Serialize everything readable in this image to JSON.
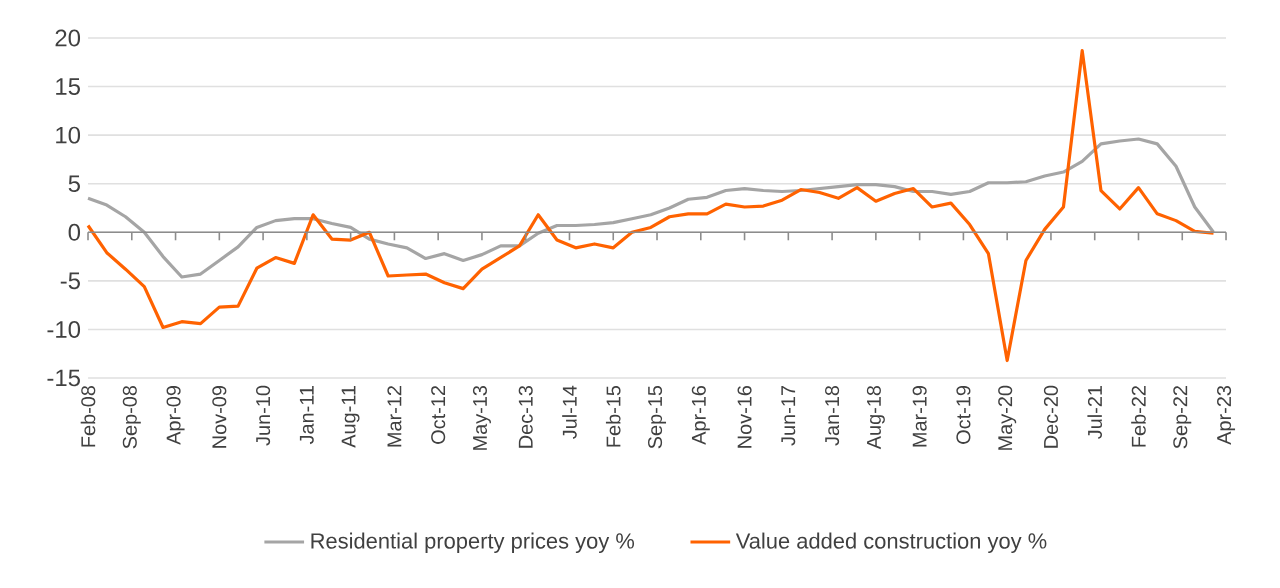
{
  "chart_data": {
    "type": "line",
    "x": [
      "2008-02",
      "2008-05",
      "2008-08",
      "2008-11",
      "2009-02",
      "2009-05",
      "2009-08",
      "2009-11",
      "2010-02",
      "2010-05",
      "2010-08",
      "2010-11",
      "2011-02",
      "2011-05",
      "2011-08",
      "2011-11",
      "2012-02",
      "2012-05",
      "2012-08",
      "2012-11",
      "2013-02",
      "2013-05",
      "2013-08",
      "2013-11",
      "2014-02",
      "2014-05",
      "2014-08",
      "2014-11",
      "2015-02",
      "2015-05",
      "2015-08",
      "2015-11",
      "2016-02",
      "2016-05",
      "2016-08",
      "2016-11",
      "2017-02",
      "2017-05",
      "2017-08",
      "2017-11",
      "2018-02",
      "2018-05",
      "2018-08",
      "2018-11",
      "2019-02",
      "2019-05",
      "2019-08",
      "2019-11",
      "2020-02",
      "2020-05",
      "2020-08",
      "2020-11",
      "2021-02",
      "2021-05",
      "2021-08",
      "2021-11",
      "2022-02",
      "2022-05",
      "2022-08",
      "2022-11",
      "2023-02"
    ],
    "series": [
      {
        "name": "Residential property prices yoy %",
        "color": "#a5a5a5",
        "values": [
          3.5,
          2.8,
          1.6,
          0,
          -2.5,
          -4.6,
          -4.3,
          -2.9,
          -1.5,
          0.5,
          1.2,
          1.4,
          1.4,
          0.9,
          0.5,
          -0.7,
          -1.2,
          -1.6,
          -2.7,
          -2.2,
          -2.9,
          -2.3,
          -1.4,
          -1.4,
          -0.1,
          0.7,
          0.7,
          0.8,
          1.0,
          1.4,
          1.8,
          2.5,
          3.4,
          3.6,
          4.3,
          4.5,
          4.3,
          4.2,
          4.3,
          4.5,
          4.7,
          4.9,
          4.9,
          4.7,
          4.2,
          4.2,
          3.9,
          4.2,
          5.1,
          5.1,
          5.2,
          5.8,
          6.2,
          7.3,
          9.1,
          9.4,
          9.6,
          9.1,
          6.8,
          2.6,
          0
        ]
      },
      {
        "name": "Value added construction yoy %",
        "color": "#ff6200",
        "values": [
          0.7,
          -2.1,
          -3.8,
          -5.6,
          -9.8,
          -9.2,
          -9.4,
          -7.7,
          -7.6,
          -3.7,
          -2.6,
          -3.2,
          1.8,
          -0.7,
          -0.8,
          0,
          -4.5,
          -4.4,
          -4.3,
          -5.2,
          -5.8,
          -3.8,
          -2.6,
          -1.4,
          1.8,
          -0.8,
          -1.6,
          -1.2,
          -1.6,
          0,
          0.5,
          1.6,
          1.9,
          1.9,
          2.9,
          2.6,
          2.7,
          3.3,
          4.4,
          4.1,
          3.5,
          4.6,
          3.2,
          4.0,
          4.5,
          2.6,
          3.0,
          0.8,
          -2.2,
          -13.2,
          -2.9,
          0.3,
          2.6,
          18.7,
          4.3,
          2.4,
          4.6,
          1.9,
          1.2,
          0.1,
          -0.1
        ]
      }
    ],
    "xlim": [
      "2008-02",
      "2023-04"
    ],
    "xticks": [
      {
        "value": "2008-02",
        "label": "Feb-08"
      },
      {
        "value": "2008-09",
        "label": "Sep-08"
      },
      {
        "value": "2009-04",
        "label": "Apr-09"
      },
      {
        "value": "2009-11",
        "label": "Nov-09"
      },
      {
        "value": "2010-06",
        "label": "Jun-10"
      },
      {
        "value": "2011-01",
        "label": "Jan-11"
      },
      {
        "value": "2011-08",
        "label": "Aug-11"
      },
      {
        "value": "2012-03",
        "label": "Mar-12"
      },
      {
        "value": "2012-10",
        "label": "Oct-12"
      },
      {
        "value": "2013-05",
        "label": "May-13"
      },
      {
        "value": "2013-12",
        "label": "Dec-13"
      },
      {
        "value": "2014-07",
        "label": "Jul-14"
      },
      {
        "value": "2015-02",
        "label": "Feb-15"
      },
      {
        "value": "2015-09",
        "label": "Sep-15"
      },
      {
        "value": "2016-04",
        "label": "Apr-16"
      },
      {
        "value": "2016-11",
        "label": "Nov-16"
      },
      {
        "value": "2017-06",
        "label": "Jun-17"
      },
      {
        "value": "2018-01",
        "label": "Jan-18"
      },
      {
        "value": "2018-08",
        "label": "Aug-18"
      },
      {
        "value": "2019-03",
        "label": "Mar-19"
      },
      {
        "value": "2019-10",
        "label": "Oct-19"
      },
      {
        "value": "2020-05",
        "label": "May-20"
      },
      {
        "value": "2020-12",
        "label": "Dec-20"
      },
      {
        "value": "2021-07",
        "label": "Jul-21"
      },
      {
        "value": "2022-02",
        "label": "Feb-22"
      },
      {
        "value": "2022-09",
        "label": "Sep-22"
      },
      {
        "value": "2023-04",
        "label": "Apr-23"
      }
    ],
    "ylim": [
      -15,
      20
    ],
    "yticks": [
      -15,
      -10,
      -5,
      0,
      5,
      10,
      15,
      20
    ],
    "grid": "y",
    "legend": "bottom",
    "marker": "none",
    "line_style": "solid"
  }
}
